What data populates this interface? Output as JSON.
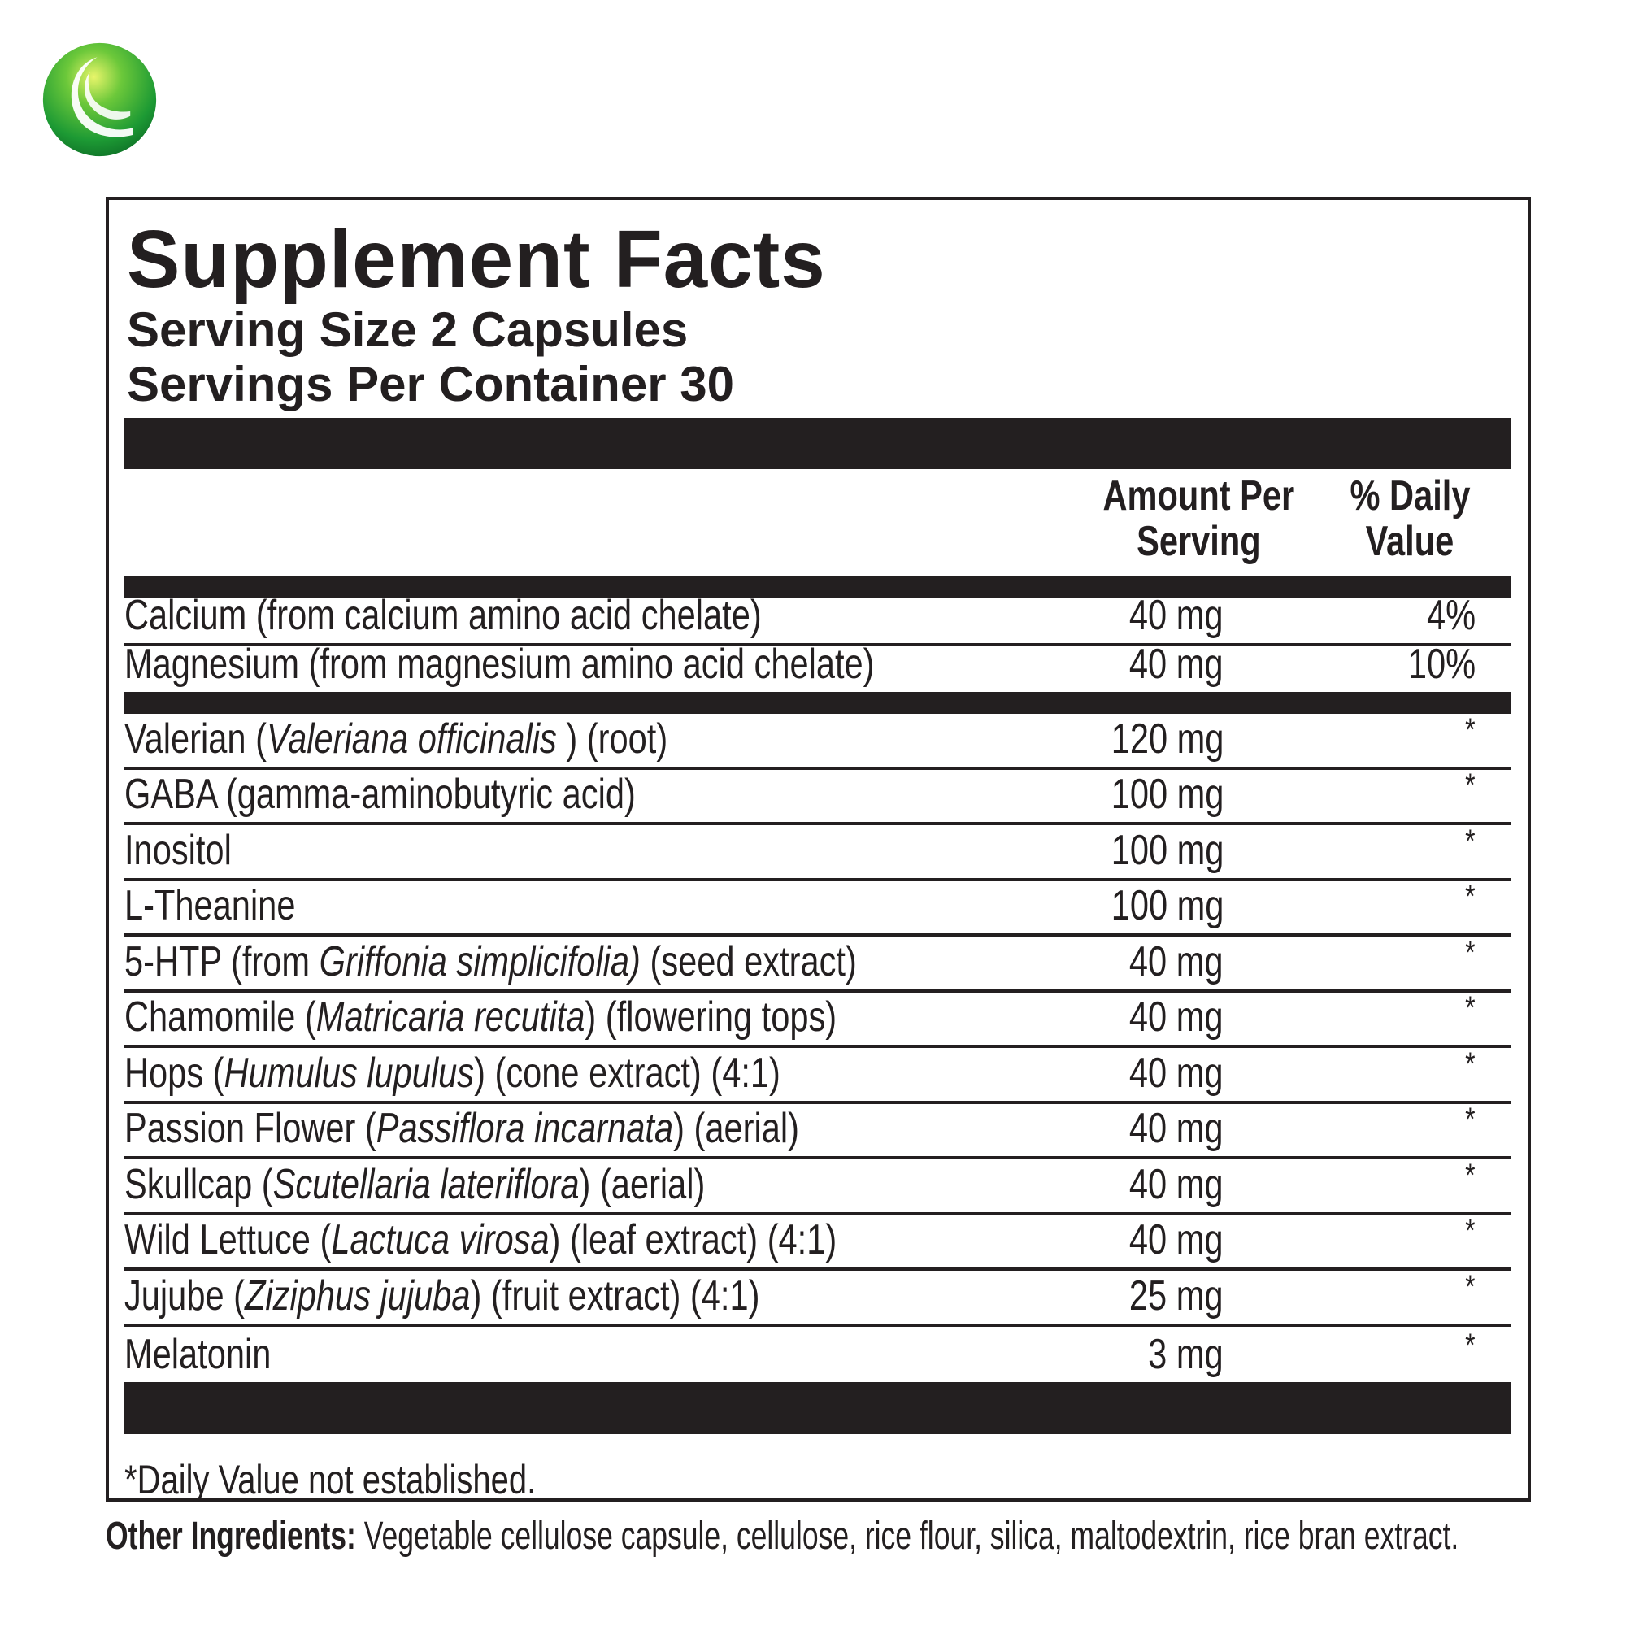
{
  "brand": {
    "logo_icon": "green-sphere-swoosh-logo",
    "colors": {
      "logo_green": "#2fa836",
      "text": "#231f20"
    }
  },
  "label": {
    "title": "Supplement Facts",
    "serving_size": "Serving Size 2 Capsules",
    "servings_per_container": "Servings Per Container 30",
    "col_amount_1": "Amount Per",
    "col_amount_2": "Serving",
    "col_dv_1": "% Daily",
    "col_dv_2": "Value",
    "vitamins": [
      {
        "pre": "Calcium (from calcium amino acid chelate)",
        "italic": "",
        "post": "",
        "amount": "40 mg",
        "dv": "4%"
      },
      {
        "pre": "Magnesium (from magnesium amino acid chelate)",
        "italic": "",
        "post": "",
        "amount": "40 mg",
        "dv": "10%"
      }
    ],
    "ingredients": [
      {
        "pre": "Valerian (",
        "italic": "Valeriana officinalis ",
        "post": ") (root)",
        "amount": "120 mg",
        "dv": "*"
      },
      {
        "pre": "GABA (gamma-aminobutyric acid)",
        "italic": "",
        "post": "",
        "amount": "100 mg",
        "dv": "*"
      },
      {
        "pre": "Inositol",
        "italic": "",
        "post": "",
        "amount": "100 mg",
        "dv": "*"
      },
      {
        "pre": "L-Theanine",
        "italic": "",
        "post": "",
        "amount": "100 mg",
        "dv": "*"
      },
      {
        "pre": "5-HTP (from ",
        "italic": "Griffonia simplicifolia)",
        "post": " (seed extract)",
        "amount": "40 mg",
        "dv": "*"
      },
      {
        "pre": "Chamomile (",
        "italic": "Matricaria recutita",
        "post": ") (flowering tops)",
        "amount": "40 mg",
        "dv": "*"
      },
      {
        "pre": "Hops (",
        "italic": "Humulus lupulus",
        "post": ") (cone extract) (4:1)",
        "amount": "40 mg",
        "dv": "*"
      },
      {
        "pre": "Passion Flower (",
        "italic": "Passiflora incarnata",
        "post": ") (aerial)",
        "amount": "40 mg",
        "dv": "*"
      },
      {
        "pre": "Skullcap (",
        "italic": "Scutellaria lateriflora",
        "post": ") (aerial)",
        "amount": "40 mg",
        "dv": "*"
      },
      {
        "pre": "Wild Lettuce (",
        "italic": "Lactuca virosa",
        "post": ") (leaf extract) (4:1)",
        "amount": "40 mg",
        "dv": "*"
      },
      {
        "pre": "Jujube (",
        "italic": "Ziziphus jujuba",
        "post": ") (fruit extract) (4:1)",
        "amount": "25 mg",
        "dv": "*"
      },
      {
        "pre": "Melatonin",
        "italic": "",
        "post": "",
        "amount": "3 mg",
        "dv": "*"
      }
    ],
    "footnote": "*Daily Value not established."
  },
  "other_ingredients": {
    "label": "Other Ingredients:",
    "text": " Vegetable cellulose capsule, cellulose, rice flour, silica, maltodextrin, rice bran extract."
  }
}
